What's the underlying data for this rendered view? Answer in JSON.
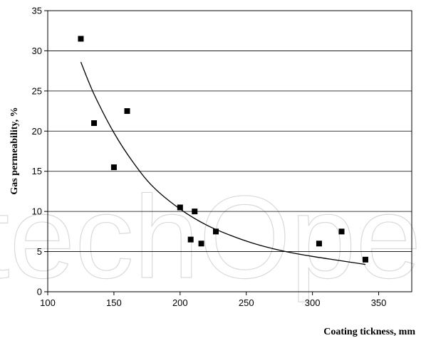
{
  "chart_data": {
    "type": "scatter",
    "xlabel": "Coating tickness, mm",
    "ylabel": "Gas permeability, %",
    "xlim": [
      100,
      375
    ],
    "ylim": [
      0,
      35
    ],
    "x_ticks": [
      100,
      150,
      200,
      250,
      300,
      350
    ],
    "y_ticks": [
      0,
      5,
      10,
      15,
      20,
      25,
      30,
      35
    ],
    "grid": "horizontal",
    "series": [
      {
        "type": "scatter",
        "marker": "square",
        "color": "#000000",
        "points": [
          {
            "x": 125,
            "y": 31.5
          },
          {
            "x": 135,
            "y": 21
          },
          {
            "x": 150,
            "y": 15.5
          },
          {
            "x": 160,
            "y": 22.5
          },
          {
            "x": 200,
            "y": 10.5
          },
          {
            "x": 208,
            "y": 6.5
          },
          {
            "x": 211,
            "y": 10
          },
          {
            "x": 216,
            "y": 6
          },
          {
            "x": 227,
            "y": 7.5
          },
          {
            "x": 305,
            "y": 6
          },
          {
            "x": 322,
            "y": 7.5
          },
          {
            "x": 340,
            "y": 4
          }
        ]
      },
      {
        "type": "line",
        "style": "fitted-curve",
        "color": "#000000",
        "points": [
          {
            "x": 125,
            "y": 28.6
          },
          {
            "x": 135,
            "y": 24.6
          },
          {
            "x": 150,
            "y": 19.8
          },
          {
            "x": 165,
            "y": 16.0
          },
          {
            "x": 180,
            "y": 13.0
          },
          {
            "x": 200,
            "y": 10.3
          },
          {
            "x": 220,
            "y": 8.3
          },
          {
            "x": 240,
            "y": 6.9
          },
          {
            "x": 260,
            "y": 5.8
          },
          {
            "x": 280,
            "y": 5.0
          },
          {
            "x": 300,
            "y": 4.4
          },
          {
            "x": 320,
            "y": 3.9
          },
          {
            "x": 340,
            "y": 3.4
          }
        ]
      }
    ]
  },
  "watermark": {
    "text": "IntechOpen",
    "color": "#d9d9d9"
  }
}
